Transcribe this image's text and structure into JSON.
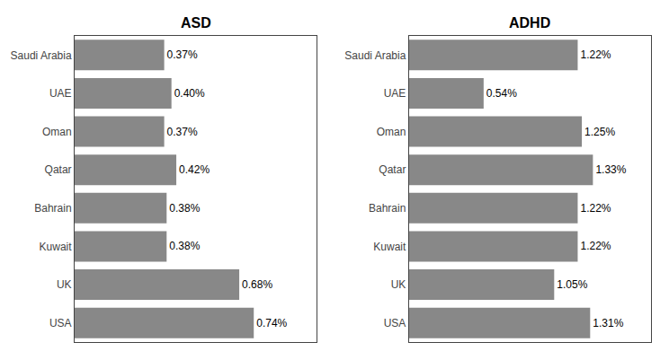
{
  "chart_data": [
    {
      "type": "bar",
      "title": "ASD",
      "orientation": "horizontal",
      "categories": [
        "Saudi Arabia",
        "UAE",
        "Oman",
        "Qatar",
        "Bahrain",
        "Kuwait",
        "UK",
        "USA"
      ],
      "values": [
        0.37,
        0.4,
        0.37,
        0.42,
        0.38,
        0.38,
        0.68,
        0.74
      ],
      "value_labels": [
        "0.37%",
        "0.40%",
        "0.37%",
        "0.42%",
        "0.38%",
        "0.38%",
        "0.68%",
        "0.74%"
      ],
      "color": "#888888",
      "xlim": [
        0,
        1.0
      ],
      "data_labels": true,
      "tick_labels": "y",
      "grid": false
    },
    {
      "type": "bar",
      "title": "ADHD",
      "orientation": "horizontal",
      "categories": [
        "Saudi Arabia",
        "UAE",
        "Oman",
        "Qatar",
        "Bahrain",
        "Kuwait",
        "UK",
        "USA"
      ],
      "values": [
        1.22,
        0.54,
        1.25,
        1.33,
        1.22,
        1.22,
        1.05,
        1.31
      ],
      "value_labels": [
        "1.22%",
        "0.54%",
        "1.25%",
        "1.33%",
        "1.22%",
        "1.22%",
        "1.05%",
        "1.31%"
      ],
      "color": "#888888",
      "xlim": [
        0,
        1.75
      ],
      "data_labels": true,
      "tick_labels": "y",
      "grid": false
    }
  ]
}
